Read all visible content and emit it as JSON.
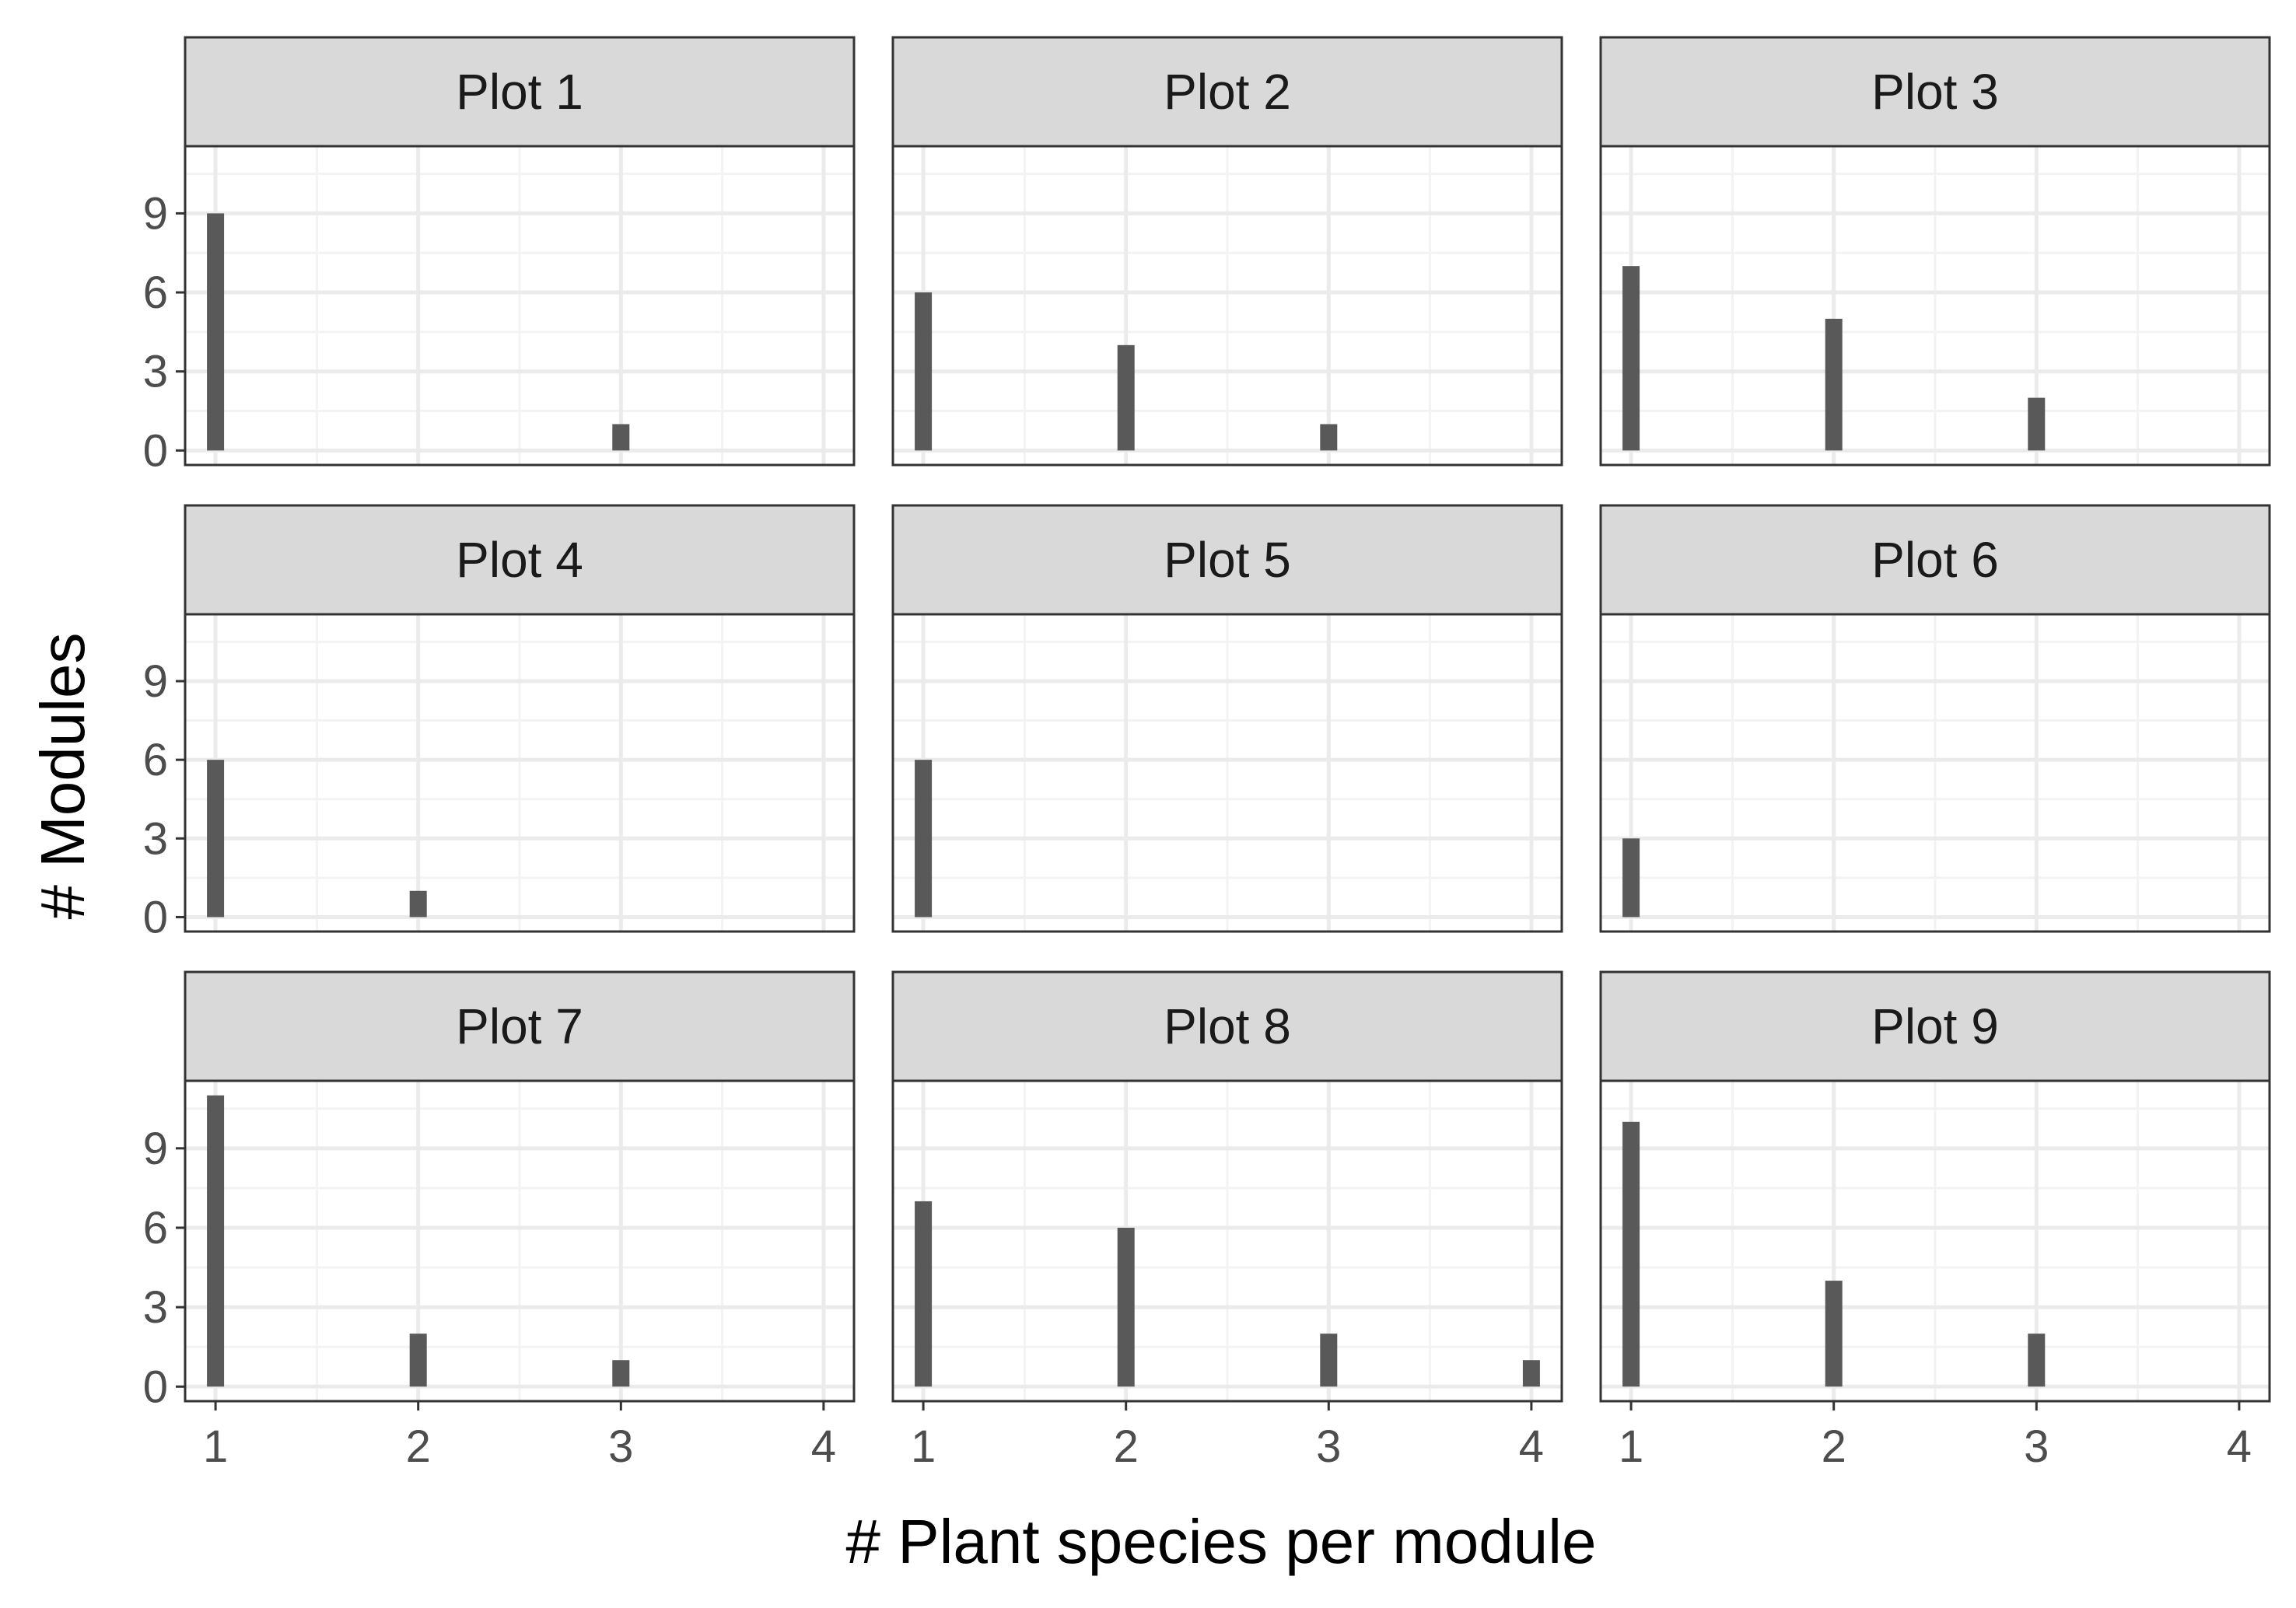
{
  "chart_data": {
    "type": "bar",
    "layout": "facet_wrap 3x3, shared axes",
    "xlabel": "# Plant species per module",
    "ylabel": "# Modules",
    "x_ticks": [
      1,
      2,
      3,
      4
    ],
    "y_ticks": [
      0,
      3,
      6,
      9
    ],
    "xlim": [
      0.85,
      4.15
    ],
    "ylim": [
      -0.55,
      11.55
    ],
    "grid": true,
    "colors": {
      "bar": "#595959",
      "strip_fill": "#d9d9d9",
      "panel_border": "#333333",
      "grid_major": "#ebebeb",
      "grid_minor": "#f3f3f3",
      "tick_text": "#4d4d4d"
    },
    "panels": [
      {
        "title": "Plot 1",
        "x": [
          1,
          3
        ],
        "values": [
          9,
          1
        ]
      },
      {
        "title": "Plot 2",
        "x": [
          1,
          2,
          3
        ],
        "values": [
          6,
          4,
          1
        ]
      },
      {
        "title": "Plot 3",
        "x": [
          1,
          2,
          3
        ],
        "values": [
          7,
          5,
          2
        ]
      },
      {
        "title": "Plot 4",
        "x": [
          1,
          2
        ],
        "values": [
          6,
          1
        ]
      },
      {
        "title": "Plot 5",
        "x": [
          1
        ],
        "values": [
          6
        ]
      },
      {
        "title": "Plot 6",
        "x": [
          1
        ],
        "values": [
          3
        ]
      },
      {
        "title": "Plot 7",
        "x": [
          1,
          2,
          3
        ],
        "values": [
          11,
          2,
          1
        ]
      },
      {
        "title": "Plot 8",
        "x": [
          1,
          2,
          3,
          4
        ],
        "values": [
          7,
          6,
          2,
          1
        ]
      },
      {
        "title": "Plot 9",
        "x": [
          1,
          2,
          3
        ],
        "values": [
          10,
          4,
          2
        ]
      }
    ]
  }
}
